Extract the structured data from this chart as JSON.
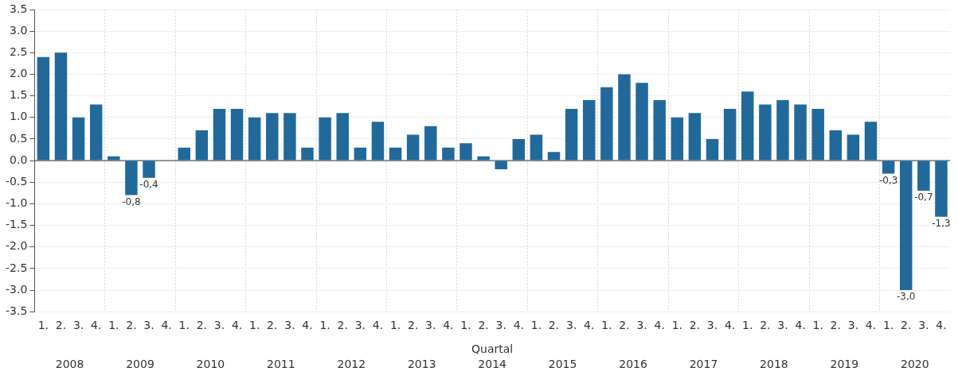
{
  "chart_data": {
    "type": "bar",
    "xlabel": "Quartal",
    "categories": [
      "1.",
      "2.",
      "3.",
      "4.",
      "1.",
      "2.",
      "3.",
      "4.",
      "1.",
      "2.",
      "3.",
      "4.",
      "1.",
      "2.",
      "3.",
      "4.",
      "1.",
      "2.",
      "3.",
      "4.",
      "1.",
      "2.",
      "3.",
      "4.",
      "1.",
      "2.",
      "3.",
      "4.",
      "1.",
      "2.",
      "3.",
      "4.",
      "1.",
      "2.",
      "3.",
      "4.",
      "1.",
      "2.",
      "3.",
      "4.",
      "1.",
      "2.",
      "3.",
      "4.",
      "1.",
      "2.",
      "3.",
      "4.",
      "1.",
      "2.",
      "3.",
      "4."
    ],
    "values": [
      2.4,
      2.5,
      1.0,
      1.3,
      0.1,
      -0.8,
      -0.4,
      0.0,
      0.3,
      0.7,
      1.2,
      1.2,
      1.0,
      1.1,
      1.1,
      0.3,
      1.0,
      1.1,
      0.3,
      0.9,
      0.3,
      0.6,
      0.8,
      0.3,
      0.4,
      0.1,
      -0.2,
      0.5,
      0.6,
      0.2,
      1.2,
      1.4,
      1.7,
      2.0,
      1.8,
      1.4,
      1.0,
      1.1,
      0.5,
      1.2,
      1.6,
      1.3,
      1.4,
      1.3,
      1.2,
      0.7,
      0.6,
      0.9,
      -0.3,
      -3.0,
      -0.7,
      -1.3
    ],
    "value_labels": [
      null,
      null,
      null,
      null,
      null,
      "-0,8",
      "-0,4",
      null,
      null,
      null,
      null,
      null,
      null,
      null,
      null,
      null,
      null,
      null,
      null,
      null,
      null,
      null,
      null,
      null,
      null,
      null,
      null,
      null,
      null,
      null,
      null,
      null,
      null,
      null,
      null,
      null,
      null,
      null,
      null,
      null,
      null,
      null,
      null,
      null,
      null,
      null,
      null,
      null,
      "-0,3",
      "-3,0",
      "-0,7",
      "-1,3"
    ],
    "annotations": [
      "2008",
      "2009",
      "2010",
      "2011",
      "2012",
      "2013",
      "2014",
      "2015",
      "2016",
      "2017",
      "2018",
      "2019",
      "2020"
    ],
    "color": "#21699b",
    "ylim": [
      -3.5,
      3.5
    ],
    "yticks": [
      {
        "value": -3.5,
        "label": "-3.5"
      },
      {
        "value": -3,
        "label": "-3.0"
      },
      {
        "value": -2.5,
        "label": "-2.5"
      },
      {
        "value": -2,
        "label": "-2.0"
      },
      {
        "value": -1.5,
        "label": "-1.5"
      },
      {
        "value": -1,
        "label": "-1.0"
      },
      {
        "value": -0.5,
        "label": "-0.5"
      },
      {
        "value": 0,
        "label": "0.0"
      },
      {
        "value": 0.5,
        "label": "0.5"
      },
      {
        "value": 1,
        "label": "1.0"
      },
      {
        "value": 1.5,
        "label": "1.5"
      },
      {
        "value": 2,
        "label": "2.0"
      },
      {
        "value": 2.5,
        "label": "2.5"
      },
      {
        "value": 3,
        "label": "3.0"
      },
      {
        "value": 3.5,
        "label": "3.5"
      }
    ],
    "grid": true,
    "legend": false
  }
}
